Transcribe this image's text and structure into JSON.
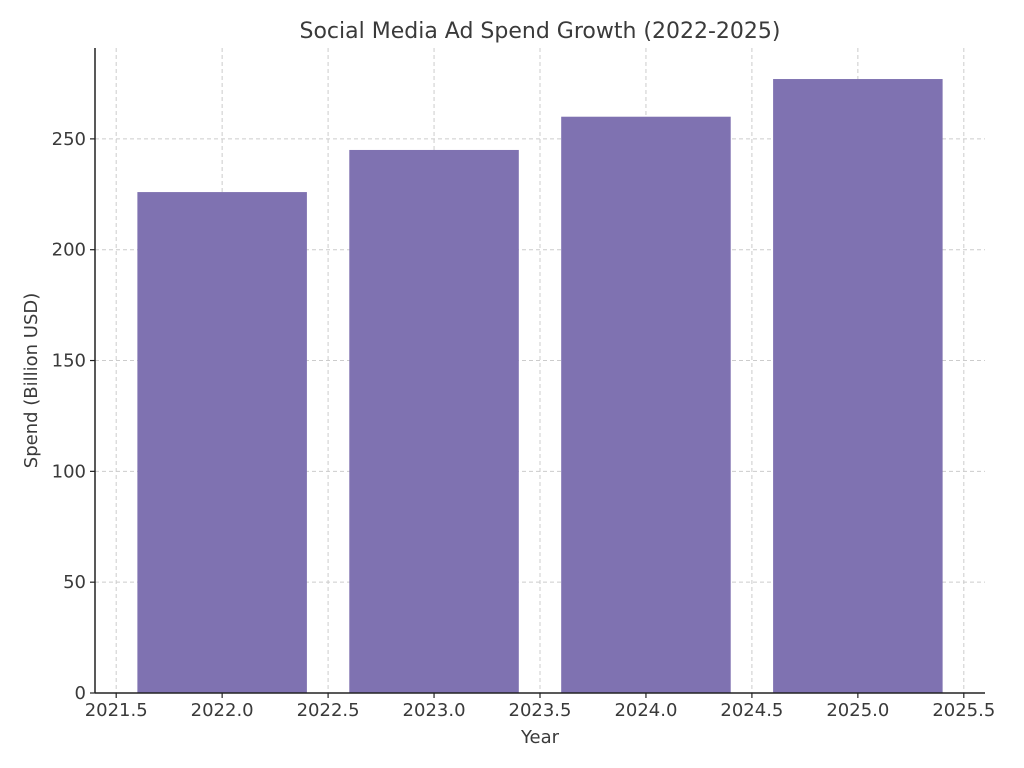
{
  "chart_data": {
    "type": "bar",
    "title": "Social Media Ad Spend Growth (2022-2025)",
    "xlabel": "Year",
    "ylabel": "Spend (Billion USD)",
    "x": [
      2022,
      2023,
      2024,
      2025
    ],
    "values": [
      226,
      245,
      260,
      277
    ],
    "bar_width": 0.8,
    "bar_color": "#7f72b1",
    "xlim": [
      2021.4,
      2025.6
    ],
    "ylim": [
      0,
      291
    ],
    "xticks": [
      2021.5,
      2022.0,
      2022.5,
      2023.0,
      2023.5,
      2024.0,
      2024.5,
      2025.0,
      2025.5
    ],
    "xtick_labels": [
      "2021.5",
      "2022.0",
      "2022.5",
      "2023.0",
      "2023.5",
      "2024.0",
      "2024.5",
      "2025.0",
      "2025.5"
    ],
    "yticks": [
      0,
      50,
      100,
      150,
      200,
      250
    ],
    "ytick_labels": [
      "0",
      "50",
      "100",
      "150",
      "200",
      "250"
    ],
    "grid": true
  }
}
